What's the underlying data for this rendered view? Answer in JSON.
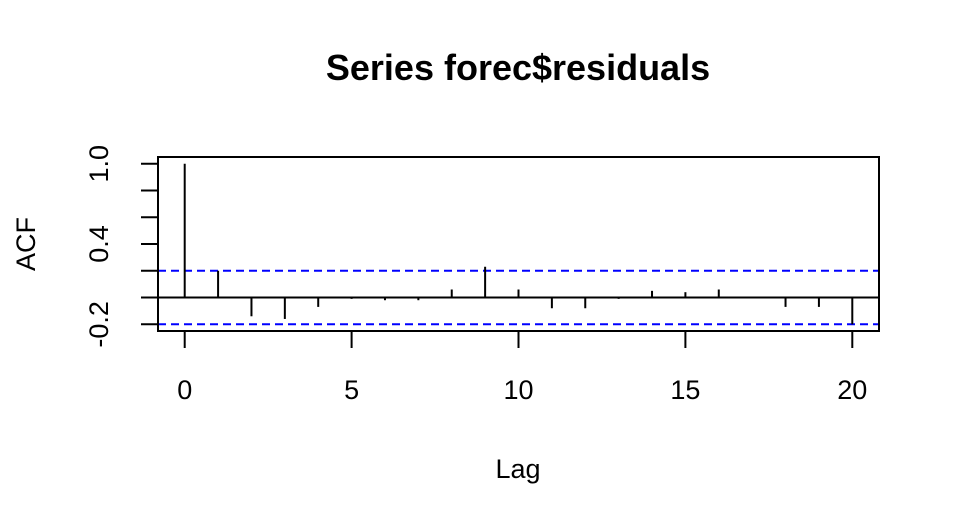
{
  "chart_data": {
    "type": "bar",
    "title": "Series  forec$residuals",
    "xlabel": "Lag",
    "ylabel": "ACF",
    "x": [
      0,
      1,
      2,
      3,
      4,
      5,
      6,
      7,
      8,
      9,
      10,
      11,
      12,
      13,
      14,
      15,
      16,
      17,
      18,
      19,
      20
    ],
    "values": [
      1.0,
      0.2,
      -0.14,
      -0.16,
      -0.07,
      -0.01,
      -0.02,
      -0.02,
      0.06,
      0.23,
      0.06,
      -0.08,
      -0.08,
      -0.01,
      0.05,
      0.04,
      0.06,
      0.0,
      -0.07,
      -0.07,
      -0.2
    ],
    "confidence_band": [
      -0.2,
      0.2
    ],
    "confidence_color": "#0000ff",
    "xlim": [
      -0.8,
      20.8
    ],
    "ylim": [
      -0.25,
      1.05
    ],
    "x_ticks": [
      0,
      5,
      10,
      15,
      20
    ],
    "y_ticks": [
      -0.2,
      0.0,
      0.2,
      0.4,
      0.6,
      0.8,
      1.0
    ],
    "y_tick_labels": [
      "-0.2",
      "",
      "",
      "0.4",
      "",
      "",
      "1.0"
    ],
    "grid": false,
    "legend": "none"
  }
}
